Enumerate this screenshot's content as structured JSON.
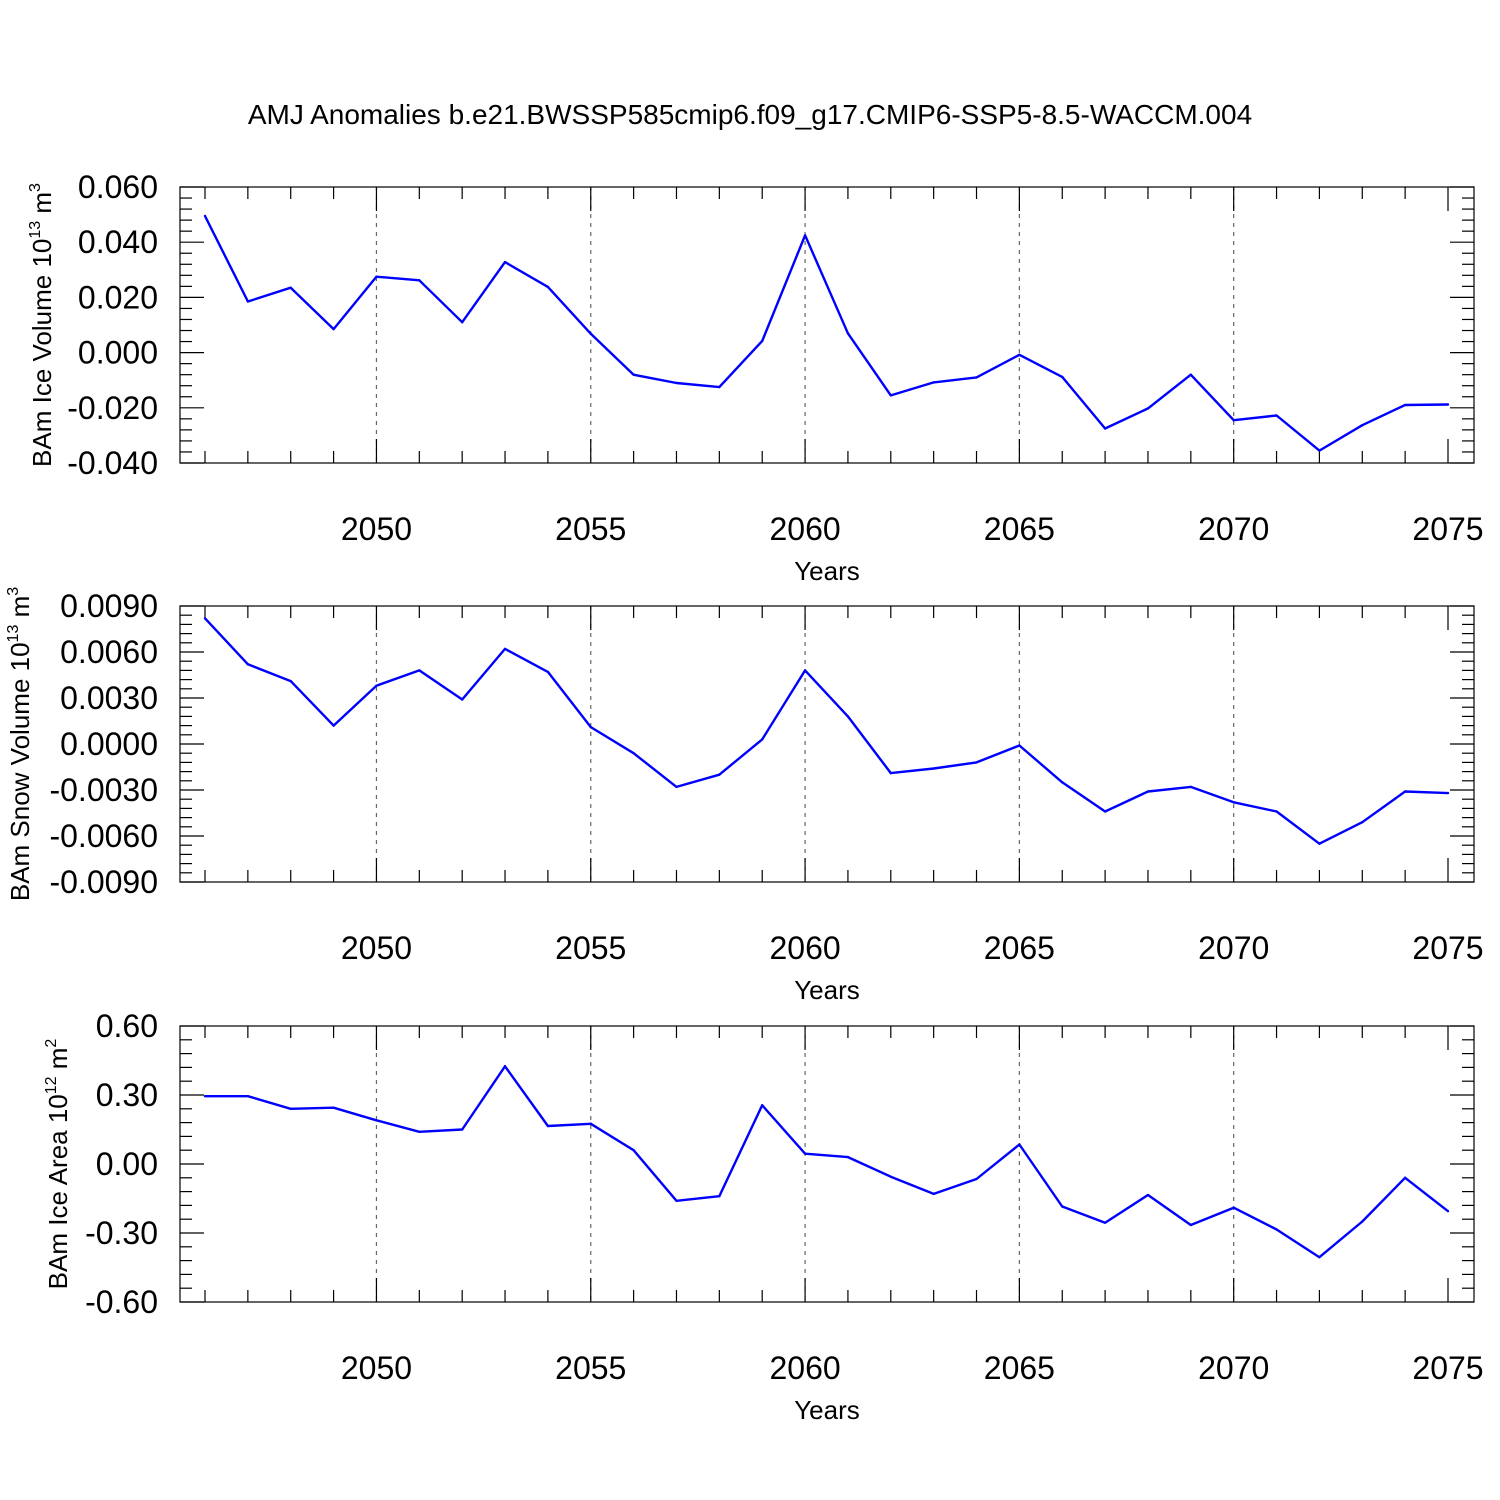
{
  "figure_title": "AMJ Anomalies b.e21.BWSSP585cmip6.f09_g17.CMIP6-SSP5-8.5-WACCM.004",
  "line_color": "#0000ff",
  "chart_data": [
    {
      "type": "line",
      "xlabel": "Years",
      "ylabel_main": "BAm Ice Volume 10",
      "ylabel_exp": "13",
      "ylabel_unit": " m",
      "ylabel_unit_exp": "3",
      "xlim": [
        2046,
        2075
      ],
      "ylim": [
        -0.04,
        0.06
      ],
      "yticks": [
        -0.04,
        -0.02,
        0.0,
        0.02,
        0.04,
        0.06
      ],
      "ytick_labels": [
        "-0.040",
        "-0.020",
        "0.000",
        "0.020",
        "0.040",
        "0.060"
      ],
      "xticks": [
        2050,
        2055,
        2060,
        2065,
        2070,
        2075
      ],
      "xtick_labels": [
        "2050",
        "2055",
        "2060",
        "2065",
        "2070",
        "2075"
      ],
      "grid": "vertical dashed at major x ticks",
      "x": [
        2046,
        2047,
        2048,
        2049,
        2050,
        2051,
        2052,
        2053,
        2054,
        2055,
        2056,
        2057,
        2058,
        2059,
        2060,
        2061,
        2062,
        2063,
        2064,
        2065,
        2066,
        2067,
        2068,
        2069,
        2070,
        2071,
        2072,
        2073,
        2074,
        2075
      ],
      "y": [
        0.0495,
        0.0185,
        0.0235,
        0.0085,
        0.0275,
        0.0262,
        0.011,
        0.0328,
        0.0238,
        0.0068,
        -0.008,
        -0.011,
        -0.0125,
        0.0042,
        0.0425,
        0.007,
        -0.0155,
        -0.0108,
        -0.009,
        -0.0008,
        -0.0088,
        -0.0275,
        -0.0202,
        -0.008,
        -0.0245,
        -0.0228,
        -0.0355,
        -0.0263,
        -0.019,
        -0.0188
      ]
    },
    {
      "type": "line",
      "xlabel": "Years",
      "ylabel_main": "BAm Snow Volume 10",
      "ylabel_exp": "13",
      "ylabel_unit": " m",
      "ylabel_unit_exp": "3",
      "xlim": [
        2046,
        2075
      ],
      "ylim": [
        -0.009,
        0.009
      ],
      "yticks": [
        -0.009,
        -0.006,
        -0.003,
        0.0,
        0.003,
        0.006,
        0.009
      ],
      "ytick_labels": [
        "-0.0090",
        "-0.0060",
        "-0.0030",
        "0.0000",
        "0.0030",
        "0.0060",
        "0.0090"
      ],
      "xticks": [
        2050,
        2055,
        2060,
        2065,
        2070,
        2075
      ],
      "xtick_labels": [
        "2050",
        "2055",
        "2060",
        "2065",
        "2070",
        "2075"
      ],
      "grid": "vertical dashed at major x ticks",
      "x": [
        2046,
        2047,
        2048,
        2049,
        2050,
        2051,
        2052,
        2053,
        2054,
        2055,
        2056,
        2057,
        2058,
        2059,
        2060,
        2061,
        2062,
        2063,
        2064,
        2065,
        2066,
        2067,
        2068,
        2069,
        2070,
        2071,
        2072,
        2073,
        2074,
        2075
      ],
      "y": [
        0.0082,
        0.0052,
        0.0041,
        0.0012,
        0.0038,
        0.0048,
        0.0029,
        0.0062,
        0.0047,
        0.0011,
        -0.0006,
        -0.0028,
        -0.002,
        0.0003,
        0.0048,
        0.0018,
        -0.0019,
        -0.0016,
        -0.0012,
        -0.0001,
        -0.0025,
        -0.0044,
        -0.0031,
        -0.0028,
        -0.0038,
        -0.0044,
        -0.0065,
        -0.0051,
        -0.0031,
        -0.0032
      ]
    },
    {
      "type": "line",
      "xlabel": "Years",
      "ylabel_main": "BAm Ice Area 10",
      "ylabel_exp": "12",
      "ylabel_unit": " m",
      "ylabel_unit_exp": "2",
      "xlim": [
        2046,
        2075
      ],
      "ylim": [
        -0.6,
        0.6
      ],
      "yticks": [
        -0.6,
        -0.3,
        0.0,
        0.3,
        0.6
      ],
      "ytick_labels": [
        "-0.60",
        "-0.30",
        "0.00",
        "0.30",
        "0.60"
      ],
      "xticks": [
        2050,
        2055,
        2060,
        2065,
        2070,
        2075
      ],
      "xtick_labels": [
        "2050",
        "2055",
        "2060",
        "2065",
        "2070",
        "2075"
      ],
      "grid": "vertical dashed at major x ticks",
      "x": [
        2046,
        2047,
        2048,
        2049,
        2050,
        2051,
        2052,
        2053,
        2054,
        2055,
        2056,
        2057,
        2058,
        2059,
        2060,
        2061,
        2062,
        2063,
        2064,
        2065,
        2066,
        2067,
        2068,
        2069,
        2070,
        2071,
        2072,
        2073,
        2074,
        2075
      ],
      "y": [
        0.295,
        0.295,
        0.24,
        0.245,
        0.19,
        0.14,
        0.15,
        0.425,
        0.165,
        0.175,
        0.06,
        -0.16,
        -0.14,
        0.255,
        0.045,
        0.03,
        -0.055,
        -0.13,
        -0.065,
        0.085,
        -0.185,
        -0.255,
        -0.135,
        -0.265,
        -0.19,
        -0.285,
        -0.405,
        -0.25,
        -0.06,
        -0.205
      ]
    }
  ]
}
